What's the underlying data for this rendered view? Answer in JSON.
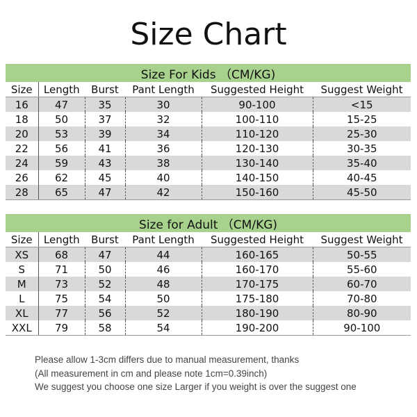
{
  "title": "Size Chart",
  "columns": [
    "Size",
    "Length",
    "Burst",
    "Pant Length",
    "Suggested Height",
    "Suggest Weight"
  ],
  "kids": {
    "banner": "Size For Kids （CM/KG)",
    "rows": [
      [
        "16",
        "47",
        "35",
        "30",
        "90-100",
        "<15"
      ],
      [
        "18",
        "50",
        "37",
        "32",
        "100-110",
        "15-25"
      ],
      [
        "20",
        "53",
        "39",
        "34",
        "110-120",
        "25-30"
      ],
      [
        "22",
        "56",
        "41",
        "36",
        "120-130",
        "30-35"
      ],
      [
        "24",
        "59",
        "43",
        "38",
        "130-140",
        "35-40"
      ],
      [
        "26",
        "62",
        "45",
        "40",
        "140-150",
        "40-45"
      ],
      [
        "28",
        "65",
        "47",
        "42",
        "150-160",
        "45-50"
      ]
    ]
  },
  "adult": {
    "banner": "Size for Adult （CM/KG)",
    "rows": [
      [
        "XS",
        "68",
        "47",
        "44",
        "160-165",
        "50-55"
      ],
      [
        "S",
        "71",
        "50",
        "46",
        "160-170",
        "55-60"
      ],
      [
        "M",
        "73",
        "52",
        "48",
        "170-175",
        "60-70"
      ],
      [
        "L",
        "75",
        "54",
        "50",
        "175-180",
        "70-80"
      ],
      [
        "XL",
        "77",
        "56",
        "52",
        "180-190",
        "80-90"
      ],
      [
        "XXL",
        "79",
        "58",
        "54",
        "190-200",
        "90-100"
      ]
    ]
  },
  "notes": [
    "Please allow 1-3cm differs due to manual measurement, thanks",
    "(All measurement in cm and please note 1cm=0.39inch)",
    "We suggest you choose one size Larger if you weight is over the suggest one"
  ],
  "colors": {
    "banner": "#a9d18e",
    "row_shade": "#d9d9d9"
  }
}
